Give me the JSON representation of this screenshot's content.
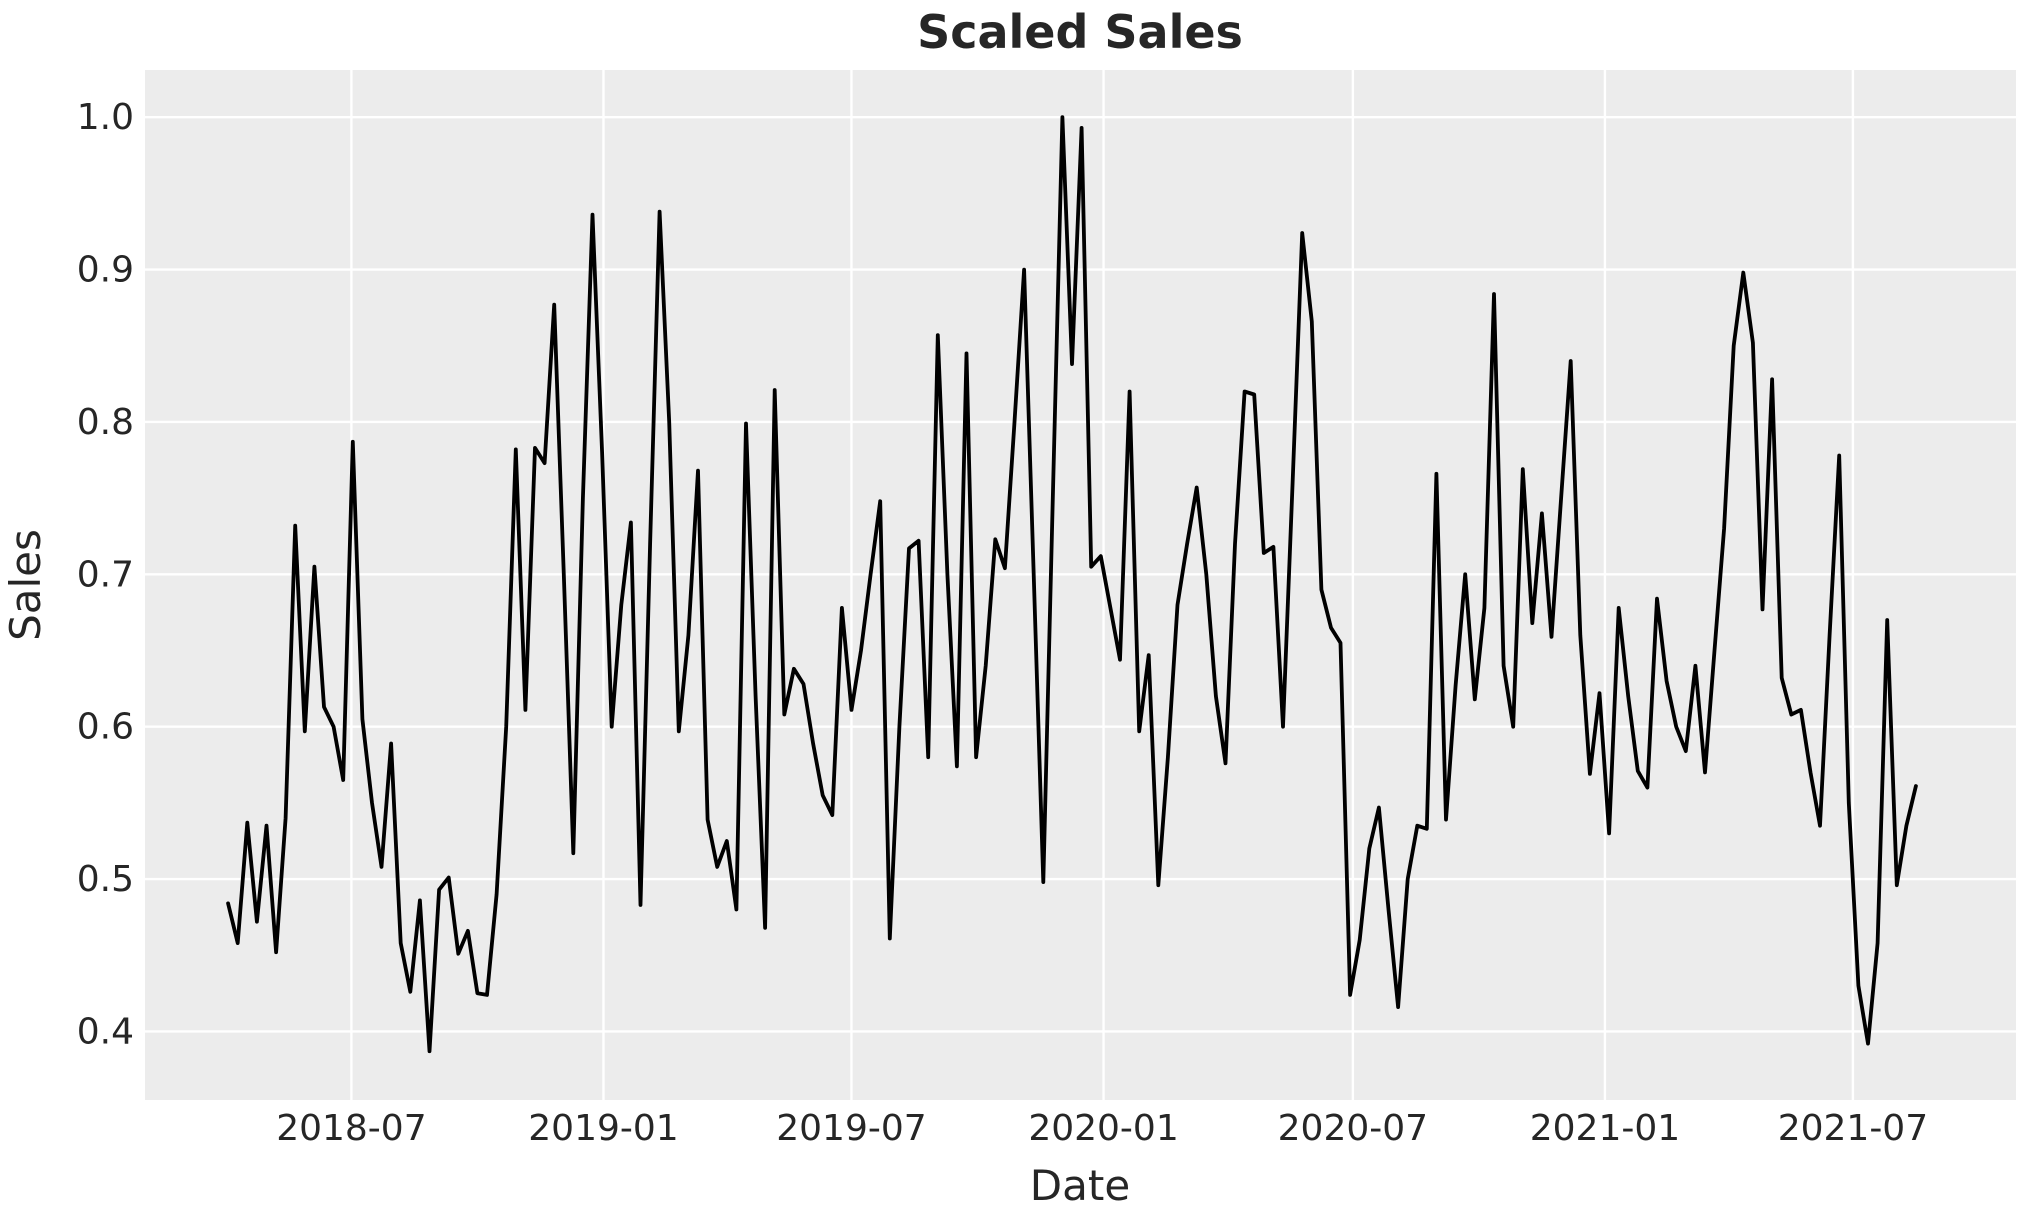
{
  "title": "Scaled Sales",
  "chart_data": {
    "type": "line",
    "title": "Scaled Sales",
    "xlabel": "Date",
    "ylabel": "Sales",
    "legend": false,
    "grid": true,
    "style": "ggplot-like gray background with white gridlines, single black line",
    "plot_bg_color": "#ECECEC",
    "grid_color": "#FFFFFF",
    "line_color": "#000000",
    "text_color": "#262626",
    "ylim": [
      0.355,
      1.031
    ],
    "y_ticks": [
      0.4,
      0.5,
      0.6,
      0.7,
      0.8,
      0.9,
      1.0
    ],
    "y_tick_labels": [
      "0.4",
      "0.5",
      "0.6",
      "0.7",
      "0.8",
      "0.9",
      "1.0"
    ],
    "x_tick_dates": [
      "2018-07-01",
      "2019-01-01",
      "2019-07-01",
      "2020-01-01",
      "2020-07-01",
      "2021-01-01",
      "2021-07-01"
    ],
    "x_tick_labels": [
      "2018-07",
      "2019-01",
      "2019-07",
      "2020-01",
      "2020-07",
      "2021-01",
      "2021-07"
    ],
    "series": [
      {
        "name": "Sales",
        "freq": "weekly",
        "start_date": "2018-04-02",
        "values": [
          0.484,
          0.458,
          0.537,
          0.472,
          0.535,
          0.452,
          0.54,
          0.732,
          0.597,
          0.705,
          0.613,
          0.6,
          0.565,
          0.787,
          0.605,
          0.55,
          0.508,
          0.589,
          0.458,
          0.426,
          0.486,
          0.387,
          0.493,
          0.501,
          0.451,
          0.466,
          0.425,
          0.424,
          0.49,
          0.6,
          0.782,
          0.611,
          0.783,
          0.773,
          0.877,
          0.7,
          0.517,
          0.75,
          0.936,
          0.78,
          0.6,
          0.68,
          0.734,
          0.483,
          0.72,
          0.938,
          0.8,
          0.597,
          0.66,
          0.768,
          0.539,
          0.508,
          0.525,
          0.48,
          0.799,
          0.62,
          0.468,
          0.821,
          0.608,
          0.638,
          0.628,
          0.589,
          0.555,
          0.542,
          0.678,
          0.611,
          0.65,
          0.7,
          0.748,
          0.461,
          0.6,
          0.717,
          0.722,
          0.58,
          0.857,
          0.7,
          0.574,
          0.845,
          0.58,
          0.64,
          0.723,
          0.704,
          0.8,
          0.9,
          0.7,
          0.498,
          0.75,
          1.0,
          0.838,
          0.993,
          0.705,
          0.712,
          0.678,
          0.644,
          0.82,
          0.597,
          0.647,
          0.496,
          0.58,
          0.68,
          0.72,
          0.757,
          0.7,
          0.62,
          0.576,
          0.72,
          0.82,
          0.818,
          0.714,
          0.718,
          0.6,
          0.76,
          0.924,
          0.866,
          0.69,
          0.665,
          0.655,
          0.424,
          0.46,
          0.52,
          0.547,
          0.48,
          0.416,
          0.5,
          0.535,
          0.533,
          0.766,
          0.539,
          0.627,
          0.7,
          0.618,
          0.678,
          0.884,
          0.64,
          0.6,
          0.769,
          0.668,
          0.74,
          0.659,
          0.75,
          0.84,
          0.66,
          0.569,
          0.622,
          0.53,
          0.678,
          0.62,
          0.571,
          0.56,
          0.684,
          0.63,
          0.6,
          0.584,
          0.64,
          0.57,
          0.65,
          0.73,
          0.85,
          0.898,
          0.852,
          0.677,
          0.828,
          0.632,
          0.608,
          0.611,
          0.57,
          0.535,
          0.66,
          0.778,
          0.55,
          0.43,
          0.392,
          0.458,
          0.67,
          0.496,
          0.535,
          0.561
        ]
      }
    ]
  }
}
